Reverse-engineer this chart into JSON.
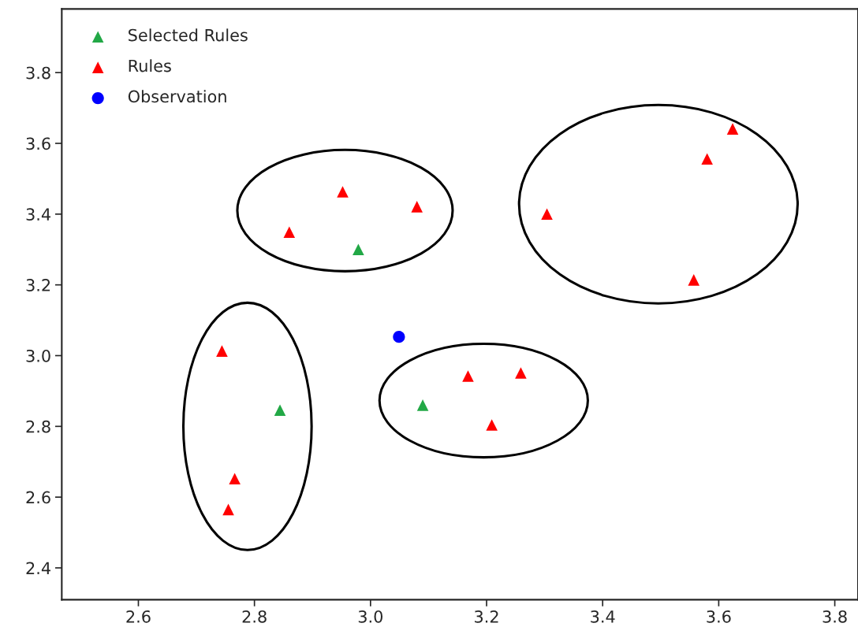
{
  "chart_data": {
    "type": "scatter",
    "series": [
      {
        "name": "Selected Rules",
        "color": "#22a846",
        "marker": "triangle",
        "x": [
          2.844,
          2.979,
          3.09
        ],
        "values": [
          2.846,
          3.3,
          2.86
        ]
      },
      {
        "name": "Rules",
        "color": "#ff0000",
        "marker": "triangle",
        "x": [
          2.744,
          2.766,
          2.755,
          2.86,
          2.952,
          3.08,
          3.168,
          3.259,
          3.209,
          3.304,
          3.58,
          3.624,
          3.557
        ],
        "values": [
          3.013,
          2.652,
          2.565,
          3.349,
          3.463,
          3.421,
          2.942,
          2.951,
          2.804,
          3.4,
          3.556,
          3.641,
          3.214
        ]
      },
      {
        "name": "Observation",
        "color": "#0000ff",
        "marker": "circle",
        "x": [
          3.049
        ],
        "values": [
          3.053
        ]
      }
    ],
    "xlim": [
      2.468,
      3.84
    ],
    "ylim": [
      2.31,
      3.98
    ],
    "xticks": [
      2.6,
      2.8,
      {
        "value": 3.0,
        "label": "3.0"
      },
      3.2,
      3.4,
      3.6,
      3.8
    ],
    "yticks": [
      2.4,
      2.6,
      2.8,
      {
        "value": 3.0,
        "label": "3.0"
      },
      3.2,
      3.4,
      3.6,
      3.8
    ],
    "grid": false,
    "legend": "top left"
  }
}
